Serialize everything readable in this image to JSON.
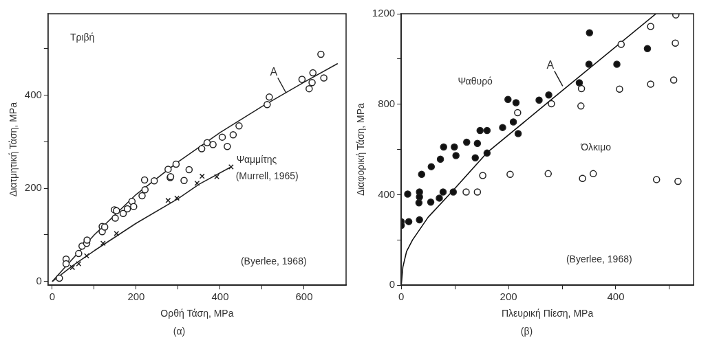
{
  "chart_data": [
    {
      "type": "scatter",
      "xlabel": "Ορθή Τάση, MPa",
      "ylabel": "Διατμητική Τάση, MPa",
      "xlim": [
        -10,
        700
      ],
      "ylim": [
        -8,
        575
      ],
      "xticks": [
        0,
        {
          "value": 100,
          "label": null
        },
        200,
        {
          "value": 300,
          "label": null
        },
        400,
        {
          "value": 500,
          "label": null
        },
        600
      ],
      "yticks": [
        0,
        {
          "value": 100,
          "label": null
        },
        200,
        {
          "value": 300,
          "label": null
        },
        400,
        {
          "value": 500,
          "label": null
        }
      ],
      "series": [
        {
          "type": "scatter",
          "marker": "circle",
          "color": "#ffffff",
          "x": [
            17,
            33,
            33,
            63,
            71,
            82,
            83,
            119,
            119,
            125,
            148,
            153,
            150,
            169,
            179,
            190,
            194,
            214,
            221,
            220,
            243,
            281,
            314,
            276,
            282,
            295,
            326,
            356,
            369,
            383,
            405,
            417,
            431,
            445,
            512,
            517,
            595,
            612,
            619,
            621,
            647,
            640
          ],
          "values": [
            7,
            48,
            38,
            60,
            76,
            82,
            89,
            118,
            107,
            117,
            154,
            152,
            136,
            146,
            156,
            172,
            161,
            184,
            197,
            218,
            216,
            223,
            217,
            241,
            225,
            252,
            240,
            285,
            298,
            294,
            310,
            290,
            315,
            334,
            380,
            396,
            434,
            414,
            427,
            448,
            437,
            488
          ]
        },
        {
          "type": "scatter",
          "marker": "cross",
          "color": "#222222",
          "x": [
            48,
            63,
            82,
            121,
            153,
            276,
            297,
            345,
            357,
            392,
            426
          ],
          "values": [
            30,
            38,
            55,
            82,
            103,
            174,
            179,
            211,
            226,
            225,
            246
          ]
        },
        {
          "type": "line",
          "marker": "none",
          "color": "#222222",
          "x": [
            0,
            100,
            200,
            300,
            400,
            500,
            600,
            680
          ],
          "values": [
            0,
            100,
            187,
            257,
            320,
            376,
            428,
            468
          ]
        },
        {
          "type": "line",
          "marker": "none",
          "color": "#222222",
          "x": [
            0,
            50,
            100,
            200,
            300,
            350,
            426
          ],
          "values": [
            0,
            35,
            66,
            125,
            178,
            209,
            246
          ]
        }
      ],
      "annotations": [
        "Τριβή",
        "Ψαμμίτης",
        "(Murrell, 1965)",
        "(Byerlee, 1968)",
        {
          "text": "A",
          "x": 557,
          "y": 405
        },
        "(α)"
      ]
    },
    {
      "type": "scatter",
      "xlabel": "Πλευρική Πίεση, MPa",
      "ylabel": "Διαφορική Τάση, MPa",
      "xlim": [
        0,
        545
      ],
      "ylim": [
        0,
        1200
      ],
      "xticks": [
        0,
        {
          "value": 100,
          "label": null
        },
        200,
        {
          "value": 300,
          "label": null
        },
        400,
        {
          "value": 500,
          "label": null
        }
      ],
      "yticks": [
        0,
        {
          "value": 200,
          "label": null
        },
        400,
        {
          "value": 600,
          "label": null
        },
        800,
        {
          "value": 1000,
          "label": null
        },
        1200
      ],
      "series": [
        {
          "type": "scatter",
          "marker": "circle",
          "color": "#111111",
          "x": [
            0,
            0,
            14,
            34,
            12,
            34,
            34,
            33,
            55,
            71,
            78,
            97,
            38,
            56,
            73,
            102,
            138,
            160,
            79,
            99,
            122,
            142,
            147,
            160,
            189,
            209,
            218,
            199,
            214,
            257,
            275,
            332,
            350,
            351,
            402,
            459
          ],
          "values": [
            281,
            264,
            281,
            289,
            403,
            412,
            390,
            364,
            367,
            385,
            412,
            412,
            490,
            524,
            557,
            573,
            563,
            584,
            611,
            611,
            632,
            627,
            684,
            684,
            697,
            722,
            670,
            821,
            807,
            818,
            841,
            895,
            977,
            1116,
            977,
            1046
          ]
        },
        {
          "type": "scatter",
          "marker": "circle",
          "color": "#ffffff",
          "x": [
            217,
            280,
            336,
            335,
            410,
            407,
            465,
            465,
            512,
            511,
            508,
            121,
            142,
            152,
            203,
            274,
            338,
            358,
            476,
            516
          ],
          "values": [
            763,
            802,
            869,
            792,
            1065,
            867,
            1144,
            889,
            1195,
            1070,
            907,
            412,
            412,
            485,
            490,
            493,
            472,
            493,
            467,
            459
          ]
        },
        {
          "type": "line",
          "marker": "none",
          "color": "#111111",
          "x": [
            0,
            3,
            10,
            21,
            50,
            94,
            160,
            273,
            475
          ],
          "values": [
            0,
            80,
            150,
            200,
            300,
            412,
            586,
            807,
            1200
          ]
        }
      ],
      "annotations": [
        "Ψαθυρό",
        "Όλκιμο",
        "(Byerlee, 1968)",
        {
          "text": "A",
          "x": 301,
          "y": 880
        },
        "(β)"
      ]
    }
  ]
}
